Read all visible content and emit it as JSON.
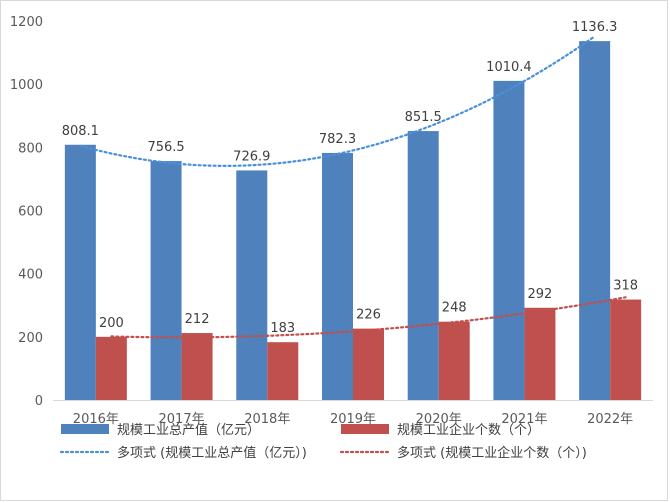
{
  "chart_data": {
    "type": "bar",
    "title": "",
    "xlabel": "",
    "ylabel": "",
    "ylim": [
      0,
      1200
    ],
    "yticks": [
      0,
      200,
      400,
      600,
      800,
      1000,
      1200
    ],
    "categories": [
      "2016年",
      "2017年",
      "2018年",
      "2019年",
      "2020年",
      "2021年",
      "2022年"
    ],
    "series": [
      {
        "name": "规模工业总产值（亿元）",
        "values": [
          808.1,
          756.5,
          726.9,
          782.3,
          851.5,
          1010.4,
          1136.3
        ],
        "color": "#4f81bd"
      },
      {
        "name": "规模工业企业个数（个）",
        "values": [
          200,
          212,
          183,
          226,
          248,
          292,
          318
        ],
        "color": "#c0504d"
      }
    ],
    "trendlines": [
      {
        "name": "多项式 (规模工业总产值（亿元）)",
        "series_index": 0,
        "kind": "polynomial",
        "color": "#4a90d9"
      },
      {
        "name": "多项式 (规模工业企业个数（个）)",
        "series_index": 1,
        "kind": "polynomial",
        "color": "#c0504d"
      }
    ],
    "grid": false,
    "legend_position": "bottom"
  }
}
